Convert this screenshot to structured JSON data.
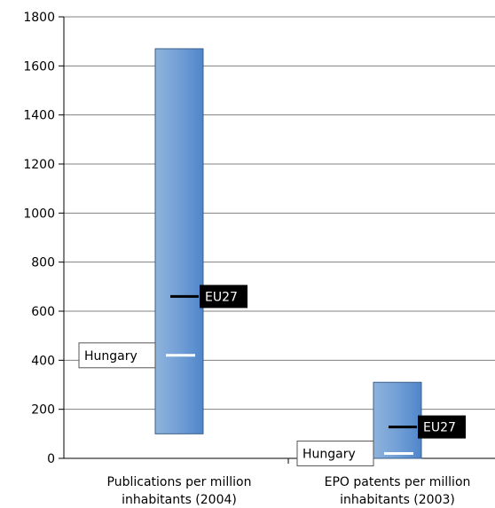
{
  "chart_data": {
    "type": "range-bar",
    "categories": [
      [
        "Publications per million",
        "inhabitants (2004)"
      ],
      [
        "EPO patents per million",
        "inhabitants (2003)"
      ]
    ],
    "bars": [
      {
        "low": 100,
        "high": 1670,
        "eu27": 660,
        "hungary": 420
      },
      {
        "low": 0,
        "high": 310,
        "eu27": 128,
        "hungary": 20
      }
    ],
    "markers": {
      "eu27_label": "EU27",
      "hungary_label": "Hungary"
    },
    "y_ticks": [
      0,
      200,
      400,
      600,
      800,
      1000,
      1200,
      1400,
      1600,
      1800
    ],
    "ylim": [
      0,
      1800
    ],
    "grid": true,
    "colors": {
      "bar_left": "#8fb4dc",
      "bar_right": "#4f86c9",
      "bar_stroke": "#3b5f8a",
      "eu27_marker": "#000000",
      "hungary_marker": "#ffffff"
    }
  }
}
